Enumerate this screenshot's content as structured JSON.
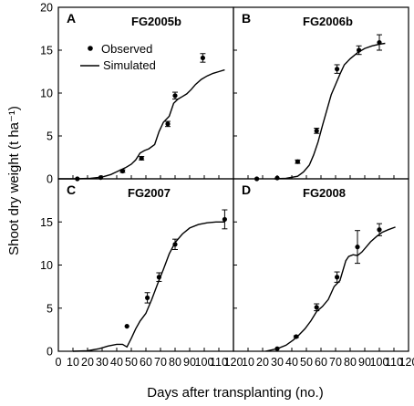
{
  "figure": {
    "xlabel": "Days after transplanting (no.)",
    "ylabel": "Shoot dry weight (t ha⁻¹)",
    "legend": {
      "observed": "Observed",
      "simulated": "Simulated"
    }
  },
  "chart_data": [
    {
      "panel": "A",
      "title": "FG2005b",
      "type": "scatter",
      "xlim": [
        0,
        120
      ],
      "ylim": [
        0,
        20
      ],
      "grid": false,
      "legend_placement": "top-left",
      "observed": {
        "x": [
          13,
          29,
          44,
          57,
          75,
          80,
          99
        ],
        "y": [
          0.0,
          0.15,
          0.9,
          2.4,
          6.4,
          9.7,
          14.1
        ],
        "err": [
          0,
          0,
          0.15,
          0.2,
          0.3,
          0.4,
          0.5
        ]
      },
      "simulated": {
        "x": [
          0,
          12,
          22,
          30,
          36,
          41,
          46,
          50,
          53,
          56,
          59,
          62,
          66,
          69,
          72,
          76,
          79,
          82,
          85,
          88,
          91,
          94,
          98,
          102,
          106,
          110,
          114
        ],
        "y": [
          0,
          0,
          0.05,
          0.2,
          0.5,
          0.9,
          1.3,
          1.7,
          2.2,
          3.0,
          3.3,
          3.5,
          4.0,
          5.5,
          6.6,
          7.3,
          8.8,
          9.3,
          9.6,
          9.9,
          10.4,
          11.0,
          11.6,
          12.0,
          12.3,
          12.5,
          12.7
        ]
      }
    },
    {
      "panel": "B",
      "title": "FG2006b",
      "type": "scatter",
      "xlim": [
        0,
        120
      ],
      "ylim": [
        0,
        20
      ],
      "grid": false,
      "legend_placement": "none",
      "observed": {
        "x": [
          16,
          30,
          44,
          57,
          71,
          86,
          100
        ],
        "y": [
          0.0,
          0.1,
          2.0,
          5.6,
          12.8,
          15.0,
          15.9
        ],
        "err": [
          0,
          0,
          0.2,
          0.3,
          0.5,
          0.5,
          0.9
        ]
      },
      "simulated": {
        "x": [
          28,
          36,
          44,
          48,
          52,
          55,
          58,
          61,
          64,
          67,
          70,
          73,
          76,
          80,
          85,
          90,
          95,
          100,
          104
        ],
        "y": [
          0,
          0.05,
          0.3,
          0.8,
          1.6,
          2.8,
          4.3,
          6.2,
          8.0,
          9.8,
          11.0,
          12.2,
          13.3,
          14.0,
          14.7,
          15.2,
          15.5,
          15.7,
          15.8
        ]
      }
    },
    {
      "panel": "C",
      "title": "FG2007",
      "type": "scatter",
      "xlim": [
        0,
        120
      ],
      "ylim": [
        0,
        20
      ],
      "grid": false,
      "legend_placement": "none",
      "observed": {
        "x": [
          47,
          61,
          69,
          80,
          114
        ],
        "y": [
          2.9,
          6.2,
          8.6,
          12.4,
          15.3
        ],
        "err": [
          0,
          0.6,
          0.5,
          0.6,
          1.1
        ]
      },
      "simulated": {
        "x": [
          10,
          20,
          28,
          34,
          40,
          44,
          47,
          50,
          53,
          56,
          60,
          64,
          68,
          72,
          76,
          80,
          85,
          90,
          96,
          102,
          108,
          114
        ],
        "y": [
          0,
          0.05,
          0.3,
          0.6,
          0.8,
          0.8,
          0.5,
          1.5,
          2.6,
          3.5,
          4.4,
          6.0,
          7.8,
          9.5,
          11.3,
          12.6,
          13.6,
          14.3,
          14.7,
          14.9,
          15.0,
          15.0
        ]
      }
    },
    {
      "panel": "D",
      "title": "FG2008",
      "type": "scatter",
      "xlim": [
        0,
        120
      ],
      "ylim": [
        0,
        20
      ],
      "grid": false,
      "legend_placement": "none",
      "observed": {
        "x": [
          30,
          43,
          57,
          71,
          85,
          100
        ],
        "y": [
          0.3,
          1.7,
          5.1,
          8.6,
          12.1,
          14.1
        ],
        "err": [
          0,
          0.1,
          0.4,
          0.6,
          1.9,
          0.7
        ]
      },
      "simulated": {
        "x": [
          22,
          30,
          36,
          41,
          45,
          49,
          53,
          57,
          61,
          65,
          69,
          73,
          77,
          79,
          82,
          85,
          88,
          91,
          94,
          98,
          102,
          106,
          111
        ],
        "y": [
          0,
          0.3,
          0.7,
          1.3,
          1.9,
          2.6,
          3.5,
          4.6,
          5.2,
          6.0,
          7.5,
          8.2,
          10.5,
          11.0,
          11.2,
          11.1,
          11.5,
          12.1,
          12.7,
          13.3,
          13.8,
          14.1,
          14.4
        ]
      }
    }
  ]
}
